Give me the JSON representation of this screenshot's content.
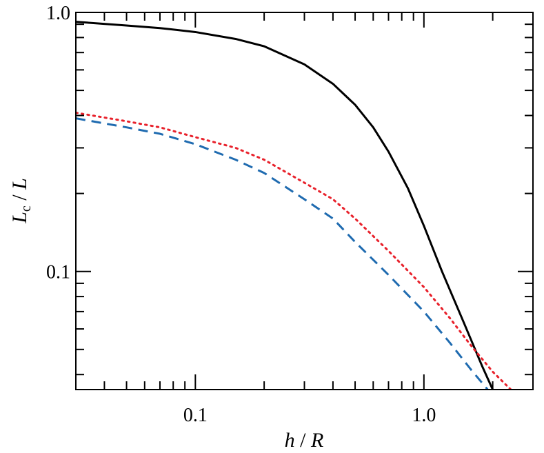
{
  "chart_data": {
    "type": "line",
    "title": "",
    "x_scale": "log",
    "y_scale": "log",
    "xlim": [
      0.03,
      3.0
    ],
    "ylim": [
      0.035,
      1.0
    ],
    "grid": false,
    "legend": "none",
    "xlabel": {
      "var": "h",
      "sep": " / ",
      "unit": "R"
    },
    "ylabel": {
      "var": "L",
      "sub": "c",
      "sep": " / ",
      "unit": "L"
    },
    "x_ticks": [
      {
        "value": 0.1,
        "label": "0.1"
      },
      {
        "value": 1.0,
        "label": "1.0"
      }
    ],
    "y_ticks": [
      {
        "value": 0.1,
        "label": "0.1"
      },
      {
        "value": 1.0,
        "label": "1.0"
      }
    ],
    "series": [
      {
        "style": "solid",
        "color": "#000000",
        "x": [
          0.03,
          0.05,
          0.07,
          0.1,
          0.15,
          0.2,
          0.3,
          0.4,
          0.5,
          0.6,
          0.7,
          0.85,
          1.0,
          1.2,
          1.5,
          1.8,
          2.0
        ],
        "y": [
          0.92,
          0.89,
          0.87,
          0.84,
          0.79,
          0.74,
          0.63,
          0.53,
          0.44,
          0.36,
          0.29,
          0.21,
          0.15,
          0.1,
          0.063,
          0.043,
          0.035
        ]
      },
      {
        "style": "dotted",
        "color": "#e8212b",
        "x": [
          0.03,
          0.05,
          0.07,
          0.1,
          0.15,
          0.2,
          0.3,
          0.4,
          0.5,
          0.7,
          1.0,
          1.3,
          1.6,
          2.0,
          2.4
        ],
        "y": [
          0.41,
          0.38,
          0.36,
          0.33,
          0.3,
          0.27,
          0.22,
          0.19,
          0.16,
          0.12,
          0.087,
          0.066,
          0.052,
          0.041,
          0.035
        ]
      },
      {
        "style": "dashed",
        "color": "#1f6bb0",
        "x": [
          0.03,
          0.05,
          0.07,
          0.1,
          0.15,
          0.2,
          0.3,
          0.4,
          0.5,
          0.7,
          1.0,
          1.3,
          1.6,
          1.9
        ],
        "y": [
          0.39,
          0.36,
          0.34,
          0.31,
          0.27,
          0.24,
          0.19,
          0.16,
          0.13,
          0.097,
          0.07,
          0.053,
          0.042,
          0.035
        ]
      }
    ]
  }
}
